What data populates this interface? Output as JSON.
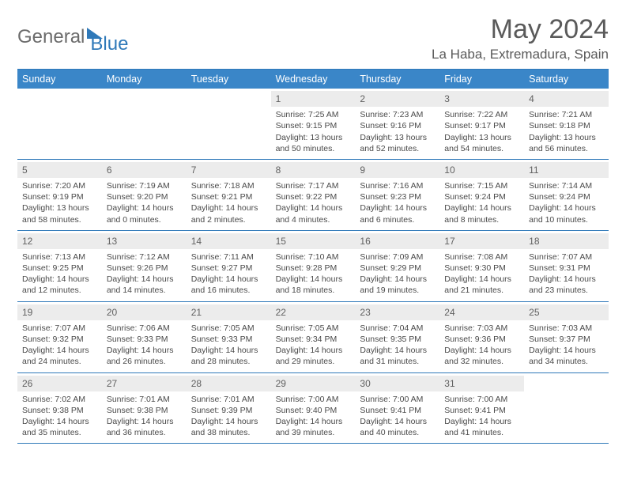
{
  "logo": {
    "text1": "General",
    "text2": "Blue"
  },
  "title": "May 2024",
  "location": "La Haba, Extremadura, Spain",
  "header_bg": "#3a86c8",
  "border_color": "#2f79b9",
  "day_names": [
    "Sunday",
    "Monday",
    "Tuesday",
    "Wednesday",
    "Thursday",
    "Friday",
    "Saturday"
  ],
  "weeks": [
    [
      null,
      null,
      null,
      {
        "n": "1",
        "sr": "7:25 AM",
        "ss": "9:15 PM",
        "d1": "13 hours",
        "d2": "and 50 minutes."
      },
      {
        "n": "2",
        "sr": "7:23 AM",
        "ss": "9:16 PM",
        "d1": "13 hours",
        "d2": "and 52 minutes."
      },
      {
        "n": "3",
        "sr": "7:22 AM",
        "ss": "9:17 PM",
        "d1": "13 hours",
        "d2": "and 54 minutes."
      },
      {
        "n": "4",
        "sr": "7:21 AM",
        "ss": "9:18 PM",
        "d1": "13 hours",
        "d2": "and 56 minutes."
      }
    ],
    [
      {
        "n": "5",
        "sr": "7:20 AM",
        "ss": "9:19 PM",
        "d1": "13 hours",
        "d2": "and 58 minutes."
      },
      {
        "n": "6",
        "sr": "7:19 AM",
        "ss": "9:20 PM",
        "d1": "14 hours",
        "d2": "and 0 minutes."
      },
      {
        "n": "7",
        "sr": "7:18 AM",
        "ss": "9:21 PM",
        "d1": "14 hours",
        "d2": "and 2 minutes."
      },
      {
        "n": "8",
        "sr": "7:17 AM",
        "ss": "9:22 PM",
        "d1": "14 hours",
        "d2": "and 4 minutes."
      },
      {
        "n": "9",
        "sr": "7:16 AM",
        "ss": "9:23 PM",
        "d1": "14 hours",
        "d2": "and 6 minutes."
      },
      {
        "n": "10",
        "sr": "7:15 AM",
        "ss": "9:24 PM",
        "d1": "14 hours",
        "d2": "and 8 minutes."
      },
      {
        "n": "11",
        "sr": "7:14 AM",
        "ss": "9:24 PM",
        "d1": "14 hours",
        "d2": "and 10 minutes."
      }
    ],
    [
      {
        "n": "12",
        "sr": "7:13 AM",
        "ss": "9:25 PM",
        "d1": "14 hours",
        "d2": "and 12 minutes."
      },
      {
        "n": "13",
        "sr": "7:12 AM",
        "ss": "9:26 PM",
        "d1": "14 hours",
        "d2": "and 14 minutes."
      },
      {
        "n": "14",
        "sr": "7:11 AM",
        "ss": "9:27 PM",
        "d1": "14 hours",
        "d2": "and 16 minutes."
      },
      {
        "n": "15",
        "sr": "7:10 AM",
        "ss": "9:28 PM",
        "d1": "14 hours",
        "d2": "and 18 minutes."
      },
      {
        "n": "16",
        "sr": "7:09 AM",
        "ss": "9:29 PM",
        "d1": "14 hours",
        "d2": "and 19 minutes."
      },
      {
        "n": "17",
        "sr": "7:08 AM",
        "ss": "9:30 PM",
        "d1": "14 hours",
        "d2": "and 21 minutes."
      },
      {
        "n": "18",
        "sr": "7:07 AM",
        "ss": "9:31 PM",
        "d1": "14 hours",
        "d2": "and 23 minutes."
      }
    ],
    [
      {
        "n": "19",
        "sr": "7:07 AM",
        "ss": "9:32 PM",
        "d1": "14 hours",
        "d2": "and 24 minutes."
      },
      {
        "n": "20",
        "sr": "7:06 AM",
        "ss": "9:33 PM",
        "d1": "14 hours",
        "d2": "and 26 minutes."
      },
      {
        "n": "21",
        "sr": "7:05 AM",
        "ss": "9:33 PM",
        "d1": "14 hours",
        "d2": "and 28 minutes."
      },
      {
        "n": "22",
        "sr": "7:05 AM",
        "ss": "9:34 PM",
        "d1": "14 hours",
        "d2": "and 29 minutes."
      },
      {
        "n": "23",
        "sr": "7:04 AM",
        "ss": "9:35 PM",
        "d1": "14 hours",
        "d2": "and 31 minutes."
      },
      {
        "n": "24",
        "sr": "7:03 AM",
        "ss": "9:36 PM",
        "d1": "14 hours",
        "d2": "and 32 minutes."
      },
      {
        "n": "25",
        "sr": "7:03 AM",
        "ss": "9:37 PM",
        "d1": "14 hours",
        "d2": "and 34 minutes."
      }
    ],
    [
      {
        "n": "26",
        "sr": "7:02 AM",
        "ss": "9:38 PM",
        "d1": "14 hours",
        "d2": "and 35 minutes."
      },
      {
        "n": "27",
        "sr": "7:01 AM",
        "ss": "9:38 PM",
        "d1": "14 hours",
        "d2": "and 36 minutes."
      },
      {
        "n": "28",
        "sr": "7:01 AM",
        "ss": "9:39 PM",
        "d1": "14 hours",
        "d2": "and 38 minutes."
      },
      {
        "n": "29",
        "sr": "7:00 AM",
        "ss": "9:40 PM",
        "d1": "14 hours",
        "d2": "and 39 minutes."
      },
      {
        "n": "30",
        "sr": "7:00 AM",
        "ss": "9:41 PM",
        "d1": "14 hours",
        "d2": "and 40 minutes."
      },
      {
        "n": "31",
        "sr": "7:00 AM",
        "ss": "9:41 PM",
        "d1": "14 hours",
        "d2": "and 41 minutes."
      },
      null
    ]
  ]
}
